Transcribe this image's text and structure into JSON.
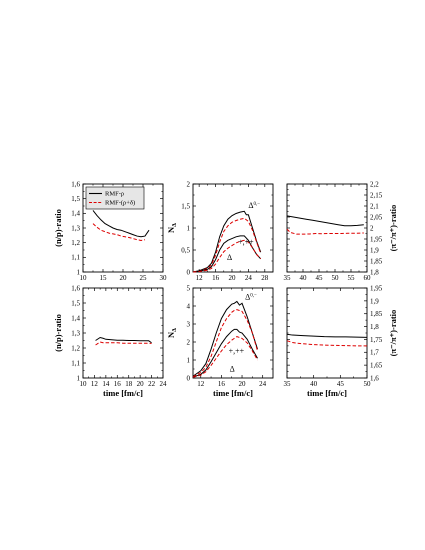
{
  "chart_data": [
    {
      "type": "line",
      "panel": "top-left",
      "ylabel": "(n/p)-ratio",
      "xlim": [
        10,
        30
      ],
      "ylim": [
        1.0,
        1.6
      ],
      "xticks": [
        "10",
        "15",
        "20",
        "25",
        "30"
      ],
      "yticks": [
        "1",
        "1,1",
        "1,2",
        "1,3",
        "1,4",
        "1,5",
        "1,6"
      ],
      "legend": {
        "position": "top-left",
        "entries": [
          "RMF-ρ",
          "RMF-(ρ+δ)"
        ]
      },
      "series": [
        {
          "name": "RMF-ρ",
          "color": "#000000",
          "dash": "solid",
          "x": [
            12.5,
            13.5,
            14.5,
            15.5,
            16.5,
            17.5,
            18.5,
            19.5,
            20.5,
            21.5,
            22.5,
            23.5,
            24.5,
            25.5,
            26.5
          ],
          "y": [
            1.42,
            1.385,
            1.355,
            1.33,
            1.315,
            1.3,
            1.29,
            1.285,
            1.275,
            1.265,
            1.255,
            1.245,
            1.24,
            1.245,
            1.285
          ]
        },
        {
          "name": "RMF-(ρ+δ)",
          "color": "#dd0000",
          "dash": "dashed",
          "x": [
            12.5,
            13.5,
            14.5,
            15.5,
            16.5,
            17.5,
            18.5,
            19.5,
            20.5,
            21.5,
            22.5,
            23.5,
            24.5,
            25.5
          ],
          "y": [
            1.33,
            1.305,
            1.285,
            1.275,
            1.265,
            1.26,
            1.255,
            1.245,
            1.24,
            1.235,
            1.228,
            1.22,
            1.215,
            1.22
          ]
        }
      ]
    },
    {
      "type": "line",
      "panel": "top-middle",
      "ylabel": "N_Δ",
      "xlim": [
        10.5,
        30
      ],
      "ylim": [
        0,
        2
      ],
      "xticks": [
        "12",
        "16",
        "20",
        "24",
        "28"
      ],
      "yticks": [
        "0",
        "0,5",
        "1",
        "1,5",
        "2"
      ],
      "annotations": [
        "Δ^{0,−}",
        "Δ^{+,++}"
      ],
      "series": [
        {
          "name": "",
          "color": "#000000",
          "dash": "solid",
          "x": [
            10.5,
            12,
            14,
            15,
            16,
            17,
            18,
            19,
            20,
            21,
            22,
            23,
            23.5,
            24,
            25,
            26,
            27
          ],
          "y": [
            0.0,
            0.03,
            0.1,
            0.2,
            0.45,
            0.8,
            1.05,
            1.2,
            1.28,
            1.33,
            1.36,
            1.38,
            1.3,
            1.3,
            1.0,
            0.7,
            0.45
          ]
        },
        {
          "name": "",
          "color": "#dd0000",
          "dash": "dashed",
          "x": [
            10.5,
            12,
            14,
            15,
            16,
            17,
            18,
            19,
            20,
            21,
            22,
            23,
            24,
            25,
            26,
            27
          ],
          "y": [
            0.0,
            0.02,
            0.08,
            0.16,
            0.38,
            0.68,
            0.92,
            1.05,
            1.13,
            1.17,
            1.2,
            1.22,
            1.15,
            0.95,
            0.68,
            0.42
          ]
        },
        {
          "name": "",
          "color": "#000000",
          "dash": "solid",
          "x": [
            10.5,
            12,
            14,
            15,
            16,
            17,
            18,
            19,
            20,
            21,
            22,
            23,
            24,
            25,
            26,
            27
          ],
          "y": [
            0.0,
            0.02,
            0.06,
            0.12,
            0.28,
            0.5,
            0.65,
            0.72,
            0.76,
            0.8,
            0.82,
            0.82,
            0.72,
            0.55,
            0.4,
            0.3
          ]
        },
        {
          "name": "",
          "color": "#dd0000",
          "dash": "dashed",
          "x": [
            10.5,
            12,
            14,
            15,
            16,
            17,
            18,
            19,
            20,
            21,
            22,
            23,
            24,
            25,
            26,
            27
          ],
          "y": [
            0.0,
            0.01,
            0.04,
            0.08,
            0.18,
            0.33,
            0.46,
            0.54,
            0.6,
            0.66,
            0.7,
            0.72,
            0.68,
            0.55,
            0.4,
            0.3
          ]
        }
      ]
    },
    {
      "type": "line",
      "panel": "top-right",
      "ylabel": "(π⁻/π⁺)-ratio",
      "y_axis_side": "right",
      "xlim": [
        35,
        60
      ],
      "ylim": [
        1.8,
        2.2
      ],
      "xticks": [
        "35",
        "40",
        "45",
        "50",
        "55",
        "60"
      ],
      "yticks": [
        "1,8",
        "1,85",
        "1,9",
        "1,95",
        "2",
        "2,05",
        "2,1",
        "2,15",
        "2,2"
      ],
      "series": [
        {
          "name": "RMF-ρ",
          "color": "#000000",
          "dash": "solid",
          "x": [
            35,
            37,
            39,
            41,
            43,
            45,
            47,
            49,
            51,
            53,
            55,
            57,
            59
          ],
          "y": [
            2.055,
            2.05,
            2.045,
            2.04,
            2.035,
            2.03,
            2.025,
            2.02,
            2.015,
            2.01,
            2.01,
            2.012,
            2.015
          ]
        },
        {
          "name": "RMF-(ρ+δ)",
          "color": "#dd0000",
          "dash": "dashed",
          "x": [
            35,
            36,
            38,
            40,
            42,
            44,
            46,
            48,
            50,
            52,
            54,
            56,
            58,
            59
          ],
          "y": [
            1.995,
            1.98,
            1.972,
            1.972,
            1.973,
            1.975,
            1.974,
            1.975,
            1.975,
            1.975,
            1.976,
            1.976,
            1.977,
            1.977
          ]
        }
      ]
    },
    {
      "type": "line",
      "panel": "bottom-left",
      "xlabel": "time [fm/c]",
      "ylabel": "(n/p)-ratio",
      "xlim": [
        10,
        24
      ],
      "ylim": [
        1.0,
        1.6
      ],
      "xticks": [
        "10",
        "12",
        "14",
        "16",
        "18",
        "20",
        "22",
        "24"
      ],
      "yticks": [
        "1",
        "1,1",
        "1,2",
        "1,3",
        "1,4",
        "1,5",
        "1,6"
      ],
      "series": [
        {
          "name": "RMF-ρ",
          "color": "#000000",
          "dash": "solid",
          "x": [
            12.2,
            13,
            13.5,
            14,
            15,
            16,
            17,
            18,
            19,
            20,
            21,
            21.5,
            22
          ],
          "y": [
            1.25,
            1.27,
            1.265,
            1.258,
            1.255,
            1.252,
            1.252,
            1.25,
            1.25,
            1.248,
            1.248,
            1.248,
            1.235
          ]
        },
        {
          "name": "RMF-(ρ+δ)",
          "color": "#dd0000",
          "dash": "dashed",
          "x": [
            12.2,
            13,
            13.5,
            14,
            15,
            16,
            17,
            18,
            19,
            20,
            21,
            21.5,
            22
          ],
          "y": [
            1.22,
            1.24,
            1.235,
            1.235,
            1.235,
            1.235,
            1.232,
            1.232,
            1.232,
            1.232,
            1.232,
            1.232,
            1.23
          ]
        }
      ]
    },
    {
      "type": "line",
      "panel": "bottom-middle",
      "xlabel": "time [fm/c]",
      "ylabel": "N_Δ",
      "xlim": [
        10.5,
        26
      ],
      "ylim": [
        0,
        5
      ],
      "xticks": [
        "12",
        "16",
        "20",
        "24"
      ],
      "yticks": [
        "0",
        "1",
        "2",
        "3",
        "4",
        "5"
      ],
      "annotations": [
        "Δ^{0,−}",
        "Δ^{+,++}"
      ],
      "series": [
        {
          "name": "",
          "color": "#000000",
          "dash": "solid",
          "x": [
            10.5,
            11,
            12,
            13,
            14,
            15,
            16,
            17,
            18,
            18.5,
            19,
            19.5,
            20,
            21,
            22,
            23
          ],
          "y": [
            0.1,
            0.2,
            0.4,
            0.8,
            1.6,
            2.5,
            3.3,
            3.8,
            4.1,
            4.15,
            4.25,
            4.05,
            4.15,
            3.4,
            2.5,
            1.6
          ]
        },
        {
          "name": "",
          "color": "#dd0000",
          "dash": "dashed",
          "x": [
            10.5,
            11,
            12,
            13,
            14,
            15,
            16,
            17,
            18,
            18.5,
            19,
            19.5,
            20,
            21,
            22,
            23
          ],
          "y": [
            0.08,
            0.15,
            0.3,
            0.6,
            1.2,
            2.0,
            2.8,
            3.3,
            3.65,
            3.75,
            3.8,
            3.75,
            3.7,
            3.2,
            2.5,
            1.5
          ]
        },
        {
          "name": "",
          "color": "#000000",
          "dash": "solid",
          "x": [
            10.5,
            11,
            12,
            13,
            14,
            15,
            16,
            17,
            18,
            18.5,
            19,
            19.5,
            20,
            21,
            22,
            23
          ],
          "y": [
            0.05,
            0.1,
            0.2,
            0.45,
            0.9,
            1.4,
            1.9,
            2.3,
            2.6,
            2.7,
            2.7,
            2.55,
            2.5,
            2.15,
            1.6,
            1.1
          ]
        },
        {
          "name": "",
          "color": "#dd0000",
          "dash": "dashed",
          "x": [
            10.5,
            11,
            12,
            13,
            14,
            15,
            16,
            17,
            18,
            18.5,
            19,
            19.5,
            20,
            21,
            22,
            23
          ],
          "y": [
            0.04,
            0.08,
            0.16,
            0.35,
            0.7,
            1.1,
            1.5,
            1.85,
            2.1,
            2.2,
            2.3,
            2.25,
            2.2,
            1.95,
            1.5,
            1.0
          ]
        }
      ]
    },
    {
      "type": "line",
      "panel": "bottom-right",
      "xlabel": "time [fm/c]",
      "ylabel": "(π⁻/π⁺)-ratio",
      "y_axis_side": "right",
      "xlim": [
        35,
        50
      ],
      "ylim": [
        1.6,
        1.95
      ],
      "xticks": [
        "35",
        "40",
        "45",
        "50"
      ],
      "yticks": [
        "1,6",
        "1,65",
        "1,7",
        "1,75",
        "1,8",
        "1,85",
        "1,9",
        "1,95"
      ],
      "series": [
        {
          "name": "RMF-ρ",
          "color": "#000000",
          "dash": "solid",
          "x": [
            35,
            36,
            38,
            40,
            42,
            44,
            46,
            48,
            50
          ],
          "y": [
            1.77,
            1.767,
            1.765,
            1.763,
            1.761,
            1.76,
            1.76,
            1.759,
            1.758
          ]
        },
        {
          "name": "RMF-(ρ+δ)",
          "color": "#dd0000",
          "dash": "dashed",
          "x": [
            35,
            36,
            37,
            38,
            40,
            42,
            44,
            46,
            48,
            50
          ],
          "y": [
            1.745,
            1.738,
            1.735,
            1.733,
            1.73,
            1.728,
            1.727,
            1.726,
            1.725,
            1.725
          ]
        }
      ]
    }
  ]
}
